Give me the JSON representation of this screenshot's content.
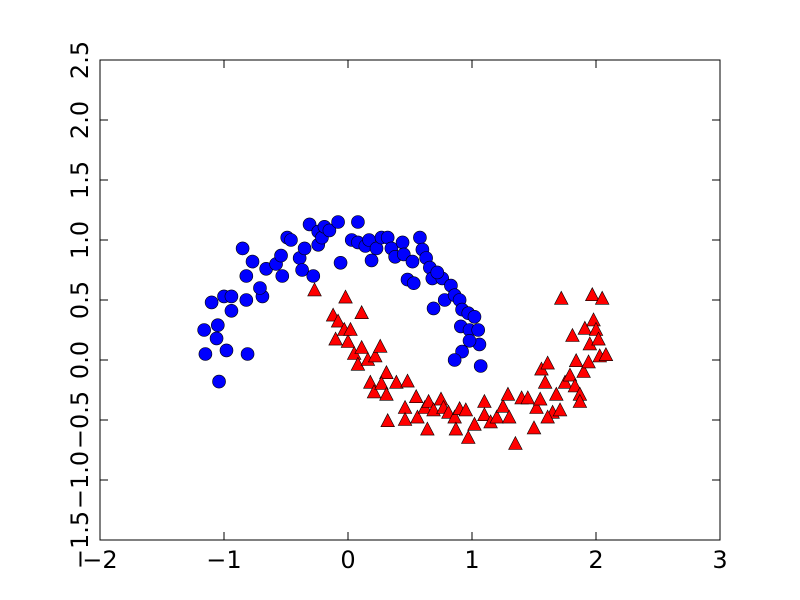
{
  "chart_data": {
    "type": "scatter",
    "xlim": [
      -2,
      3
    ],
    "ylim": [
      -1.5,
      2.5
    ],
    "xticks": [
      {
        "value": -2,
        "label": "−2"
      },
      {
        "value": -1,
        "label": "−1"
      },
      0,
      1,
      2,
      3
    ],
    "yticks": [
      {
        "value": -1.5,
        "label": "−1.5"
      },
      {
        "value": -1.0,
        "label": "−1.0"
      },
      {
        "value": -0.5,
        "label": "−0.5"
      },
      {
        "value": 0.0,
        "label": "0.0"
      },
      0.5,
      {
        "value": 1.0,
        "label": "1.0"
      },
      1.5,
      {
        "value": 2.0,
        "label": "2.0"
      },
      2.5
    ],
    "series": [
      {
        "color": "#0000ff",
        "marker": "circle",
        "x": [
          -1.16,
          -1.1,
          -1.15,
          -1.05,
          -0.98,
          -1.04,
          -1.06,
          -1.0,
          -0.94,
          -0.94,
          -0.81,
          -0.85,
          -0.82,
          -0.77,
          -0.69,
          -0.66,
          -0.82,
          -0.71,
          -0.58,
          -0.53,
          -0.54,
          -0.49,
          -0.46,
          -0.39,
          -0.37,
          -0.35,
          -0.28,
          -0.31,
          -0.24,
          -0.24,
          -0.21,
          -0.19,
          -0.15,
          -0.08,
          -0.06,
          0.03,
          0.08,
          0.08,
          0.14,
          0.17,
          0.19,
          0.23,
          0.27,
          0.32,
          0.35,
          0.38,
          0.44,
          0.45,
          0.48,
          0.52,
          0.58,
          0.6,
          0.63,
          0.66,
          0.68,
          0.53,
          0.69,
          0.76,
          0.78,
          0.83,
          0.86,
          0.9,
          0.91,
          0.92,
          0.97,
          0.98,
          1.02,
          1.05,
          1.06,
          0.98,
          0.92,
          0.86,
          1.07,
          0.72
        ],
        "y": [
          0.25,
          0.48,
          0.05,
          0.29,
          0.08,
          -0.18,
          0.18,
          0.53,
          0.53,
          0.41,
          0.05,
          0.93,
          0.7,
          0.82,
          0.53,
          0.76,
          0.5,
          0.6,
          0.8,
          0.7,
          0.87,
          1.02,
          1.0,
          0.85,
          0.75,
          0.93,
          0.7,
          1.13,
          1.07,
          0.96,
          1.02,
          1.11,
          1.08,
          1.15,
          0.81,
          1.0,
          1.15,
          0.98,
          0.95,
          1.0,
          0.83,
          0.93,
          1.02,
          1.02,
          0.93,
          0.86,
          0.98,
          0.88,
          0.67,
          0.82,
          1.02,
          0.92,
          0.85,
          0.77,
          0.68,
          0.64,
          0.43,
          0.68,
          0.5,
          0.62,
          0.54,
          0.5,
          0.28,
          0.42,
          0.39,
          0.25,
          0.36,
          0.25,
          0.13,
          0.16,
          0.07,
          0.0,
          -0.05,
          0.73
        ]
      },
      {
        "color": "#ff0000",
        "marker": "triangle",
        "x": [
          -0.27,
          -0.02,
          0.11,
          -0.12,
          -0.08,
          -0.03,
          -0.1,
          0.0,
          0.05,
          0.02,
          0.11,
          0.08,
          0.16,
          0.22,
          0.26,
          0.31,
          0.18,
          0.21,
          0.27,
          0.31,
          0.32,
          0.39,
          0.48,
          0.46,
          0.46,
          0.55,
          0.56,
          0.62,
          0.64,
          0.65,
          0.69,
          0.75,
          0.77,
          0.81,
          0.86,
          0.9,
          0.95,
          0.97,
          0.87,
          1.02,
          1.1,
          1.1,
          1.15,
          1.2,
          1.25,
          1.29,
          1.3,
          1.35,
          1.4,
          1.45,
          1.5,
          1.52,
          1.55,
          1.59,
          1.56,
          1.61,
          1.65,
          1.71,
          1.68,
          1.72,
          1.75,
          1.79,
          1.81,
          1.83,
          1.87,
          1.84,
          1.9,
          1.91,
          1.94,
          1.95,
          1.97,
          1.98,
          2.0,
          2.02,
          2.05,
          2.03,
          2.08,
          1.87,
          1.61
        ],
        "y": [
          0.58,
          0.52,
          0.39,
          0.37,
          0.32,
          0.25,
          0.17,
          0.15,
          0.05,
          0.25,
          0.1,
          -0.04,
          0.0,
          0.03,
          0.11,
          -0.11,
          -0.19,
          -0.27,
          -0.2,
          -0.29,
          -0.51,
          -0.19,
          -0.18,
          -0.4,
          -0.5,
          -0.31,
          -0.48,
          -0.4,
          -0.58,
          -0.35,
          -0.42,
          -0.33,
          -0.4,
          -0.44,
          -0.48,
          -0.41,
          -0.42,
          -0.65,
          -0.58,
          -0.54,
          -0.35,
          -0.46,
          -0.52,
          -0.48,
          -0.39,
          -0.29,
          -0.48,
          -0.7,
          -0.32,
          -0.32,
          -0.57,
          -0.4,
          -0.33,
          -0.19,
          -0.08,
          -0.03,
          -0.44,
          -0.42,
          -0.29,
          0.51,
          -0.19,
          -0.13,
          0.2,
          -0.22,
          -0.29,
          -0.01,
          -0.1,
          0.26,
          -0.02,
          0.13,
          0.54,
          0.33,
          0.25,
          0.17,
          0.51,
          0.03,
          0.04,
          -0.35,
          -0.48
        ]
      }
    ]
  }
}
